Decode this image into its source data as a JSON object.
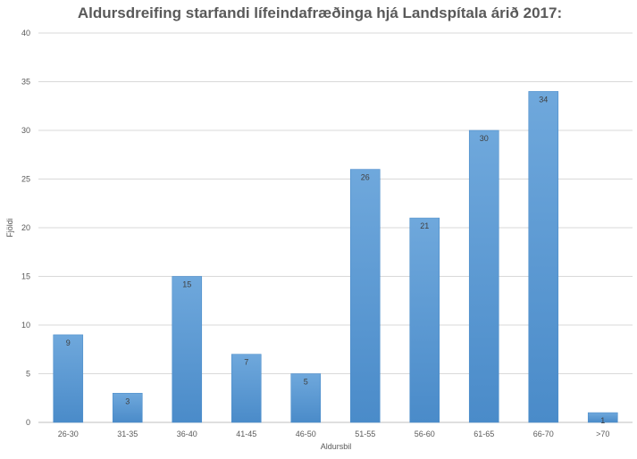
{
  "chart_data": {
    "type": "bar",
    "title": "Aldursdreifing starfandi lífeindafræðinga hjá Landspítala árið 2017:",
    "xlabel": "Aldursbil",
    "ylabel": "Fjöldi",
    "categories": [
      "26-30",
      "31-35",
      "36-40",
      "41-45",
      "46-50",
      "51-55",
      "56-60",
      "61-65",
      "66-70",
      ">70"
    ],
    "values": [
      9,
      3,
      15,
      7,
      5,
      26,
      21,
      30,
      34,
      1
    ],
    "ylim": [
      0,
      40
    ],
    "yticks": [
      0,
      5,
      10,
      15,
      20,
      25,
      30,
      35,
      40
    ],
    "grid": true,
    "legend": "none",
    "bar_color": "#5b9bd5",
    "data_labels": true
  }
}
